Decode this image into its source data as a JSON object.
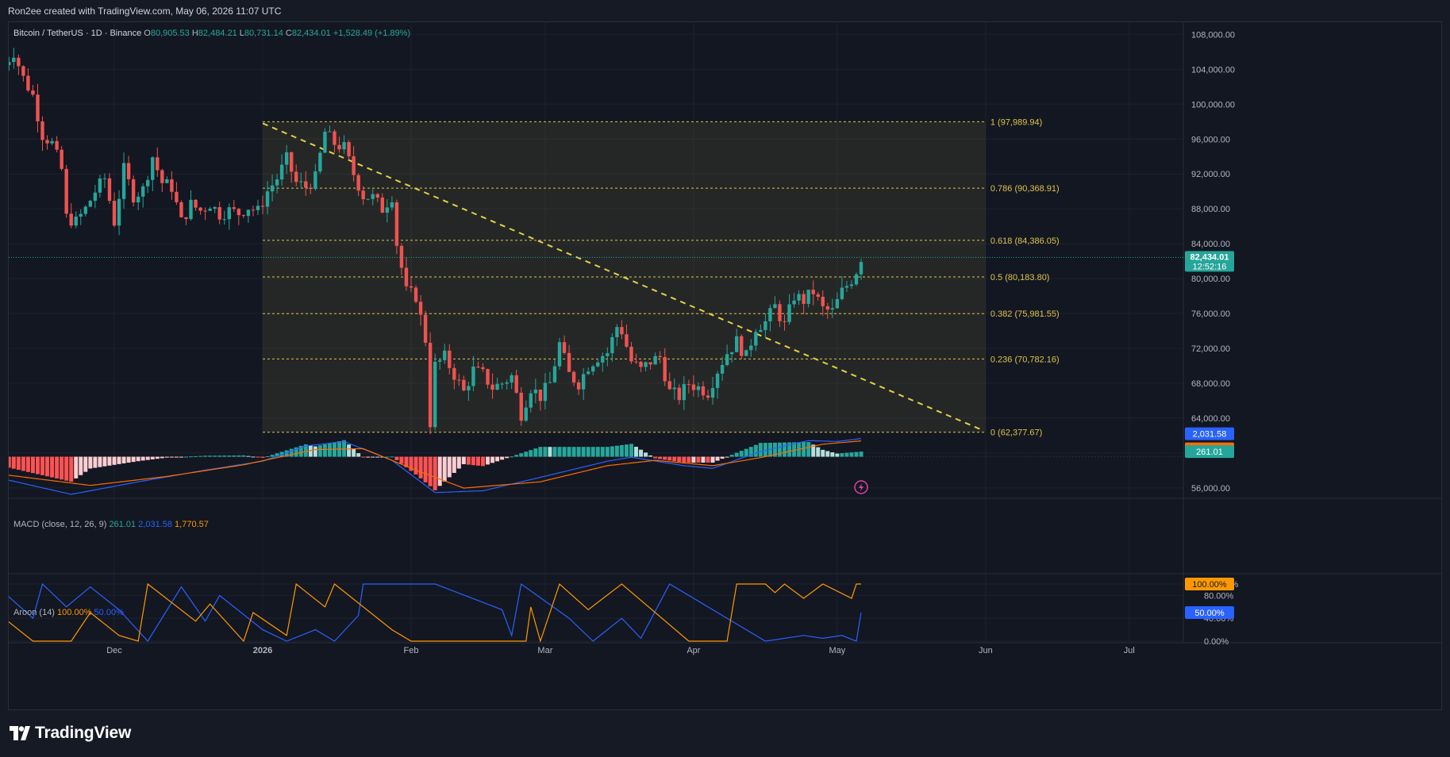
{
  "credit": "Ron2ee created with TradingView.com, May 06, 2026 11:07 UTC",
  "brand": "TradingView",
  "colors": {
    "up": "#26a69a",
    "down": "#ef5350",
    "fib_line": "#e0c34a",
    "trend": "#e3d143",
    "macd": "#2962ff",
    "signal": "#ff6d00",
    "aroon_up": "#ff9800",
    "aroon_down": "#2962ff"
  },
  "main_legend": {
    "symbol": "Bitcoin / TetherUS · 1D · Binance",
    "o_label": "O",
    "o": "80,905.53",
    "h_label": "H",
    "h": "82,484.21",
    "l_label": "L",
    "l": "80,731.14",
    "c_label": "C",
    "c": "82,434.01",
    "change": "+1,528.49 (+1.89%)"
  },
  "price_badge": {
    "value": "82,434.01",
    "countdown": "12:52:16"
  },
  "macd_legend": {
    "title": "MACD (close, 12, 26, 9)",
    "hist": "261.01",
    "macd": "2,031.58",
    "signal": "1,770.57"
  },
  "aroon_legend": {
    "title": "Aroon (14)",
    "up": "100.00%",
    "down": "50.00%"
  },
  "chart_data": {
    "type": "candlestick",
    "title": "Bitcoin / TetherUS · 1D · Binance",
    "price_axis": {
      "range": [
        54800,
        109400
      ],
      "ticks": [
        108000,
        104000,
        100000,
        96000,
        92000,
        88000,
        84000,
        80000,
        76000,
        72000,
        68000,
        64000,
        60000,
        56000
      ],
      "tick_labels": [
        "108,000.00",
        "104,000.00",
        "100,000.00",
        "96,000.00",
        "92,000.00",
        "88,000.00",
        "84,000.00",
        "80,000.00",
        "76,000.00",
        "72,000.00",
        "68,000.00",
        "64,000.00",
        "60,000.00",
        "56,000.00"
      ]
    },
    "time_axis": {
      "labels": [
        "Dec",
        "2026",
        "Feb",
        "Mar",
        "Apr",
        "May",
        "Jun",
        "Jul"
      ],
      "dates": [
        "2025-12-01",
        "2026-01-01",
        "2026-02-01",
        "2026-03-01",
        "2026-04-01",
        "2026-05-01",
        "2026-06-01",
        "2026-07-01"
      ]
    },
    "last_price": 82434.01,
    "fib_retracement": {
      "from_date": "2026-01-01",
      "to_date": "2026-06-01",
      "levels": [
        {
          "ratio": 1,
          "price": 97989.94,
          "label": "1 (97,989.94)"
        },
        {
          "ratio": 0.786,
          "price": 90368.91,
          "label": "0.786 (90,368.91)"
        },
        {
          "ratio": 0.618,
          "price": 84386.05,
          "label": "0.618 (84,386.05)"
        },
        {
          "ratio": 0.5,
          "price": 80183.8,
          "label": "0.5 (80,183.80)"
        },
        {
          "ratio": 0.382,
          "price": 75981.55,
          "label": "0.382 (75,981.55)"
        },
        {
          "ratio": 0.236,
          "price": 70782.16,
          "label": "0.236 (70,782.16)"
        },
        {
          "ratio": 0,
          "price": 62377.67,
          "label": "0 (62,377.67)"
        }
      ]
    },
    "trendline": {
      "points": [
        [
          "2026-01-01",
          97800
        ],
        [
          "2026-05-31",
          62700
        ]
      ],
      "style": "dashed"
    },
    "candles_source": "close path",
    "closes": [
      [
        "2025-11-08",
        104500
      ],
      [
        "2025-11-10",
        106000
      ],
      [
        "2025-11-12",
        103000
      ],
      [
        "2025-11-14",
        101000
      ],
      [
        "2025-11-16",
        96500
      ],
      [
        "2025-11-18",
        95500
      ],
      [
        "2025-11-20",
        92500
      ],
      [
        "2025-11-21",
        87000
      ],
      [
        "2025-11-23",
        86500
      ],
      [
        "2025-11-25",
        88000
      ],
      [
        "2025-11-27",
        90000
      ],
      [
        "2025-11-29",
        91500
      ],
      [
        "2025-12-01",
        86500
      ],
      [
        "2025-12-03",
        92500
      ],
      [
        "2025-12-05",
        89500
      ],
      [
        "2025-12-07",
        90200
      ],
      [
        "2025-12-09",
        94000
      ],
      [
        "2025-12-11",
        91000
      ],
      [
        "2025-12-13",
        90500
      ],
      [
        "2025-12-15",
        86500
      ],
      [
        "2025-12-17",
        88500
      ],
      [
        "2025-12-19",
        87800
      ],
      [
        "2025-12-21",
        88600
      ],
      [
        "2025-12-23",
        87400
      ],
      [
        "2025-12-25",
        87800
      ],
      [
        "2025-12-27",
        87500
      ],
      [
        "2025-12-29",
        88200
      ],
      [
        "2025-12-31",
        87700
      ],
      [
        "2026-01-02",
        90000
      ],
      [
        "2026-01-04",
        91500
      ],
      [
        "2026-01-06",
        93700
      ],
      [
        "2026-01-08",
        91000
      ],
      [
        "2026-01-10",
        90500
      ],
      [
        "2026-01-12",
        91500
      ],
      [
        "2026-01-14",
        96800
      ],
      [
        "2026-01-16",
        95500
      ],
      [
        "2026-01-18",
        95000
      ],
      [
        "2026-01-20",
        92000
      ],
      [
        "2026-01-22",
        89500
      ],
      [
        "2026-01-24",
        89300
      ],
      [
        "2026-01-26",
        88000
      ],
      [
        "2026-01-28",
        89500
      ],
      [
        "2026-01-29",
        84000
      ],
      [
        "2026-01-31",
        78500
      ],
      [
        "2026-02-02",
        78000
      ],
      [
        "2026-02-04",
        73000
      ],
      [
        "2026-02-05",
        63500
      ],
      [
        "2026-02-06",
        70000
      ],
      [
        "2026-02-08",
        71000
      ],
      [
        "2026-02-10",
        69000
      ],
      [
        "2026-02-12",
        67000
      ],
      [
        "2026-02-14",
        69500
      ],
      [
        "2026-02-16",
        69000
      ],
      [
        "2026-02-18",
        67500
      ],
      [
        "2026-02-20",
        68000
      ],
      [
        "2026-02-22",
        68800
      ],
      [
        "2026-02-24",
        64500
      ],
      [
        "2026-02-26",
        67500
      ],
      [
        "2026-02-28",
        66500
      ],
      [
        "2026-03-02",
        68000
      ],
      [
        "2026-03-04",
        72500
      ],
      [
        "2026-03-06",
        69000
      ],
      [
        "2026-03-08",
        68000
      ],
      [
        "2026-03-10",
        70000
      ],
      [
        "2026-03-12",
        71000
      ],
      [
        "2026-03-14",
        71500
      ],
      [
        "2026-03-16",
        74500
      ],
      [
        "2026-03-17",
        74000
      ],
      [
        "2026-03-19",
        70500
      ],
      [
        "2026-03-21",
        69500
      ],
      [
        "2026-03-23",
        70500
      ],
      [
        "2026-03-25",
        71000
      ],
      [
        "2026-03-27",
        67000
      ],
      [
        "2026-03-29",
        66500
      ],
      [
        "2026-03-31",
        68000
      ],
      [
        "2026-04-02",
        67500
      ],
      [
        "2026-04-04",
        67000
      ],
      [
        "2026-04-06",
        69500
      ],
      [
        "2026-04-08",
        71500
      ],
      [
        "2026-04-10",
        72800
      ],
      [
        "2026-04-12",
        71000
      ],
      [
        "2026-04-14",
        74500
      ],
      [
        "2026-04-16",
        75000
      ],
      [
        "2026-04-18",
        76800
      ],
      [
        "2026-04-20",
        74600
      ],
      [
        "2026-04-22",
        78000
      ],
      [
        "2026-04-24",
        77500
      ],
      [
        "2026-04-26",
        78500
      ],
      [
        "2026-04-28",
        76500
      ],
      [
        "2026-04-30",
        76200
      ],
      [
        "2026-05-02",
        78500
      ],
      [
        "2026-05-04",
        79900
      ],
      [
        "2026-05-05",
        80900
      ],
      [
        "2026-05-06",
        82434
      ]
    ],
    "macd_panel": {
      "params": "close, 12, 26, 9",
      "hist_last": 261.01,
      "macd_last": 2031.58,
      "signal_last": 1770.57,
      "macd_path": [
        [
          "2025-11-08",
          -2500
        ],
        [
          "2025-11-22",
          -4200
        ],
        [
          "2025-12-06",
          -2800
        ],
        [
          "2025-12-20",
          -1500
        ],
        [
          "2026-01-01",
          -500
        ],
        [
          "2026-01-10",
          1200
        ],
        [
          "2026-01-18",
          1700
        ],
        [
          "2026-01-28",
          -400
        ],
        [
          "2026-02-06",
          -4000
        ],
        [
          "2026-02-16",
          -3800
        ],
        [
          "2026-02-28",
          -2300
        ],
        [
          "2026-03-14",
          -500
        ],
        [
          "2026-03-19",
          -50
        ],
        [
          "2026-03-30",
          -1000
        ],
        [
          "2026-04-05",
          -1300
        ],
        [
          "2026-04-15",
          600
        ],
        [
          "2026-04-25",
          1800
        ],
        [
          "2026-05-01",
          1700
        ],
        [
          "2026-05-06",
          2031.58
        ]
      ],
      "signal_path": [
        [
          "2025-11-08",
          -2000
        ],
        [
          "2025-11-26",
          -3200
        ],
        [
          "2025-12-12",
          -2200
        ],
        [
          "2025-12-28",
          -900
        ],
        [
          "2026-01-12",
          800
        ],
        [
          "2026-01-22",
          900
        ],
        [
          "2026-02-02",
          -1500
        ],
        [
          "2026-02-12",
          -3500
        ],
        [
          "2026-02-28",
          -2800
        ],
        [
          "2026-03-14",
          -1000
        ],
        [
          "2026-03-24",
          -400
        ],
        [
          "2026-04-05",
          -1000
        ],
        [
          "2026-04-15",
          -100
        ],
        [
          "2026-04-28",
          1400
        ],
        [
          "2026-05-06",
          1770.57
        ]
      ]
    },
    "aroon_panel": {
      "length": 14,
      "y_ticks": [
        "100.00%",
        "80.00%",
        "40.00%",
        "0.00%"
      ],
      "aroon_up_last": 100,
      "aroon_down_last": 50,
      "up_path": [
        [
          "2025-11-08",
          40
        ],
        [
          "2025-11-14",
          0
        ],
        [
          "2025-11-22",
          0
        ],
        [
          "2025-11-26",
          50
        ],
        [
          "2025-12-02",
          10
        ],
        [
          "2025-12-06",
          0
        ],
        [
          "2025-12-08",
          100
        ],
        [
          "2025-12-18",
          35
        ],
        [
          "2025-12-21",
          65
        ],
        [
          "2025-12-28",
          0
        ],
        [
          "2025-12-30",
          50
        ],
        [
          "2026-01-06",
          10
        ],
        [
          "2026-01-08",
          100
        ],
        [
          "2026-01-14",
          60
        ],
        [
          "2026-01-16",
          100
        ],
        [
          "2026-01-28",
          20
        ],
        [
          "2026-02-01",
          0
        ],
        [
          "2026-02-25",
          0
        ],
        [
          "2026-02-26",
          60
        ],
        [
          "2026-02-28",
          0
        ],
        [
          "2026-03-04",
          100
        ],
        [
          "2026-03-10",
          55
        ],
        [
          "2026-03-17",
          100
        ],
        [
          "2026-03-31",
          0
        ],
        [
          "2026-04-08",
          0
        ],
        [
          "2026-04-10",
          100
        ],
        [
          "2026-04-16",
          100
        ],
        [
          "2026-04-18",
          85
        ],
        [
          "2026-04-20",
          100
        ],
        [
          "2026-04-24",
          75
        ],
        [
          "2026-04-28",
          100
        ],
        [
          "2026-05-04",
          75
        ],
        [
          "2026-05-05",
          100
        ],
        [
          "2026-05-06",
          100
        ]
      ],
      "down_path": [
        [
          "2025-11-08",
          85
        ],
        [
          "2025-11-14",
          40
        ],
        [
          "2025-11-16",
          100
        ],
        [
          "2025-11-21",
          60
        ],
        [
          "2025-11-26",
          95
        ],
        [
          "2025-12-02",
          55
        ],
        [
          "2025-12-08",
          0
        ],
        [
          "2025-12-15",
          95
        ],
        [
          "2025-12-20",
          35
        ],
        [
          "2025-12-23",
          80
        ],
        [
          "2026-01-01",
          20
        ],
        [
          "2026-01-06",
          0
        ],
        [
          "2026-01-12",
          20
        ],
        [
          "2026-01-16",
          0
        ],
        [
          "2026-01-21",
          45
        ],
        [
          "2026-01-22",
          100
        ],
        [
          "2026-02-06",
          100
        ],
        [
          "2026-02-20",
          55
        ],
        [
          "2026-02-22",
          10
        ],
        [
          "2026-02-24",
          100
        ],
        [
          "2026-03-06",
          40
        ],
        [
          "2026-03-11",
          0
        ],
        [
          "2026-03-17",
          40
        ],
        [
          "2026-03-21",
          5
        ],
        [
          "2026-03-27",
          100
        ],
        [
          "2026-04-10",
          30
        ],
        [
          "2026-04-16",
          0
        ],
        [
          "2026-04-24",
          10
        ],
        [
          "2026-04-28",
          5
        ],
        [
          "2026-05-02",
          10
        ],
        [
          "2026-05-05",
          0
        ],
        [
          "2026-05-06",
          50
        ]
      ]
    }
  }
}
